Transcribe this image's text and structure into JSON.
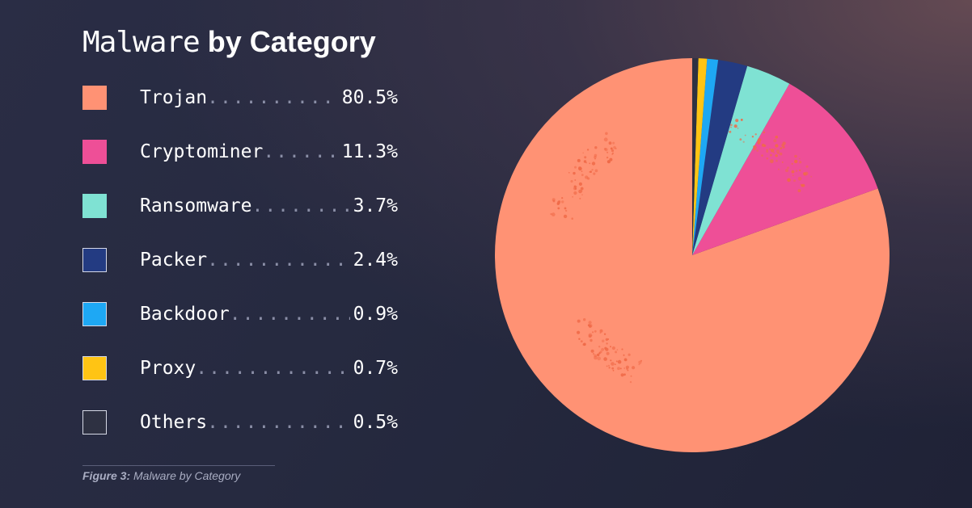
{
  "title": {
    "light": "Malware",
    "bold": "by Category"
  },
  "caption": {
    "label": "Figure 3:",
    "text": "Malware by Category"
  },
  "chart_data": {
    "type": "pie",
    "title": "Malware by Category",
    "legend_position": "left",
    "slices": [
      {
        "label": "Trojan",
        "value": 80.5,
        "display": "80.5%",
        "color": "#ff9274"
      },
      {
        "label": "Cryptominer",
        "value": 11.3,
        "display": "11.3%",
        "color": "#ee4f97"
      },
      {
        "label": "Ransomware",
        "value": 3.7,
        "display": "3.7%",
        "color": "#7fe2d3"
      },
      {
        "label": "Packer",
        "value": 2.4,
        "display": "2.4%",
        "color": "#233b82"
      },
      {
        "label": "Backdoor",
        "value": 0.9,
        "display": "0.9%",
        "color": "#1ea8f4"
      },
      {
        "label": "Proxy",
        "value": 0.7,
        "display": "0.7%",
        "color": "#ffc414"
      },
      {
        "label": "Others",
        "value": 0.5,
        "display": "0.5%",
        "color": "#2e3142"
      }
    ]
  }
}
